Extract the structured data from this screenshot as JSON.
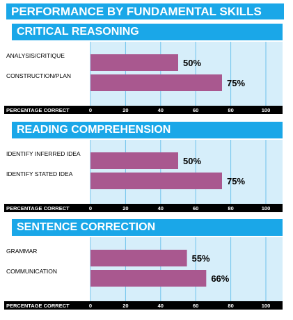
{
  "page_title": "PERFORMANCE BY FUNDAMENTAL SKILLS",
  "chart_data": [
    {
      "type": "bar",
      "orientation": "horizontal",
      "title": "CRITICAL REASONING",
      "categories": [
        "ANALYSIS/CRITIQUE",
        "CONSTRUCTION/PLAN"
      ],
      "values": [
        50,
        75
      ],
      "value_labels": [
        "50%",
        "75%"
      ],
      "xlabel": "PERCENTAGE CORRECT",
      "xlim": [
        0,
        100
      ],
      "xticks": [
        "0",
        "20",
        "40",
        "60",
        "80",
        "100"
      ],
      "grid": true
    },
    {
      "type": "bar",
      "orientation": "horizontal",
      "title": "READING COMPREHENSION",
      "categories": [
        "IDENTIFY INFERRED IDEA",
        "IDENTIFY STATED IDEA"
      ],
      "values": [
        50,
        75
      ],
      "value_labels": [
        "50%",
        "75%"
      ],
      "xlabel": "PERCENTAGE CORRECT",
      "xlim": [
        0,
        100
      ],
      "xticks": [
        "0",
        "20",
        "40",
        "60",
        "80",
        "100"
      ],
      "grid": true
    },
    {
      "type": "bar",
      "orientation": "horizontal",
      "title": "SENTENCE CORRECTION",
      "categories": [
        "GRAMMAR",
        "COMMUNICATION"
      ],
      "values": [
        55,
        66
      ],
      "value_labels": [
        "55%",
        "66%"
      ],
      "xlabel": "PERCENTAGE CORRECT",
      "xlim": [
        0,
        100
      ],
      "xticks": [
        "0",
        "20",
        "40",
        "60",
        "80",
        "100"
      ],
      "grid": true
    }
  ],
  "colors": {
    "header_bg": "#1aa7e8",
    "plot_bg": "#d6eefa",
    "bar": "#a9588f",
    "gridline": "#6fc3ec",
    "axis_bar": "#000000"
  }
}
